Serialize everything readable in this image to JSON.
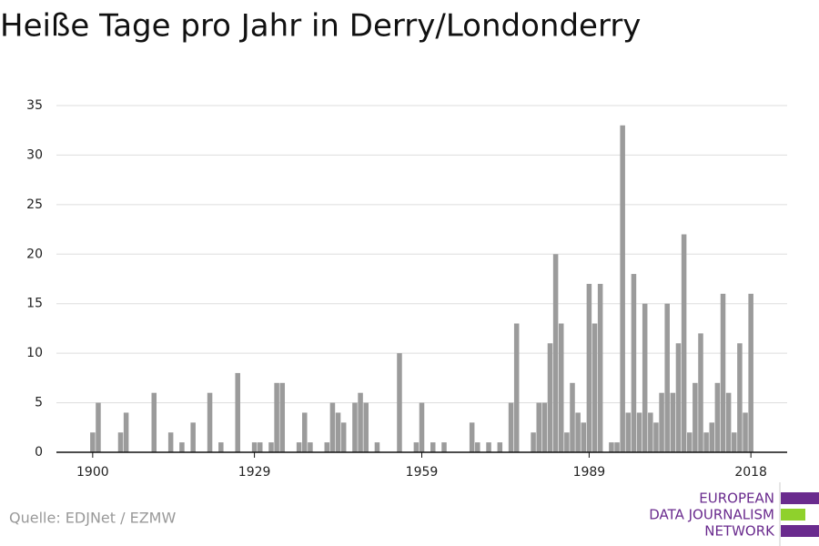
{
  "chart_data": {
    "type": "bar",
    "title": "Heiße Tage pro Jahr in Derry/Londonderry",
    "x": [
      1900,
      1901,
      1905,
      1906,
      1911,
      1914,
      1916,
      1918,
      1921,
      1923,
      1926,
      1929,
      1930,
      1932,
      1933,
      1934,
      1937,
      1938,
      1939,
      1942,
      1943,
      1944,
      1945,
      1947,
      1948,
      1949,
      1951,
      1955,
      1958,
      1959,
      1961,
      1963,
      1968,
      1969,
      1971,
      1973,
      1975,
      1976,
      1979,
      1980,
      1981,
      1982,
      1983,
      1984,
      1985,
      1986,
      1987,
      1988,
      1989,
      1990,
      1991,
      1993,
      1994,
      1995,
      1996,
      1997,
      1998,
      1999,
      2000,
      2001,
      2002,
      2003,
      2004,
      2005,
      2006,
      2007,
      2008,
      2009,
      2010,
      2011,
      2012,
      2013,
      2014,
      2015,
      2016,
      2017,
      2018
    ],
    "values": [
      2,
      5,
      2,
      4,
      6,
      2,
      1,
      3,
      6,
      1,
      8,
      1,
      1,
      1,
      7,
      7,
      1,
      4,
      1,
      1,
      5,
      4,
      3,
      5,
      6,
      5,
      1,
      10,
      1,
      5,
      1,
      1,
      3,
      1,
      1,
      1,
      5,
      13,
      2,
      5,
      5,
      11,
      20,
      13,
      2,
      7,
      4,
      3,
      17,
      13,
      17,
      1,
      1,
      33,
      4,
      18,
      4,
      15,
      4,
      3,
      6,
      15,
      6,
      11,
      22,
      2,
      7,
      12,
      2,
      3,
      7,
      16,
      6,
      2,
      11,
      4,
      16
    ],
    "color": "#9b9b9b",
    "xlim": [
      1893.5,
      2024.5
    ],
    "xticks": [
      1900,
      1929,
      1959,
      1989,
      2018
    ],
    "ylim": [
      0,
      35
    ],
    "yticks": [
      0,
      5,
      10,
      15,
      20,
      25,
      30,
      35
    ],
    "grid": true
  },
  "footer": {
    "source": "Quelle: EDJNet / EZMW",
    "logo": [
      "EUROPEAN",
      "DATA JOURNALISM",
      "NETWORK"
    ]
  }
}
